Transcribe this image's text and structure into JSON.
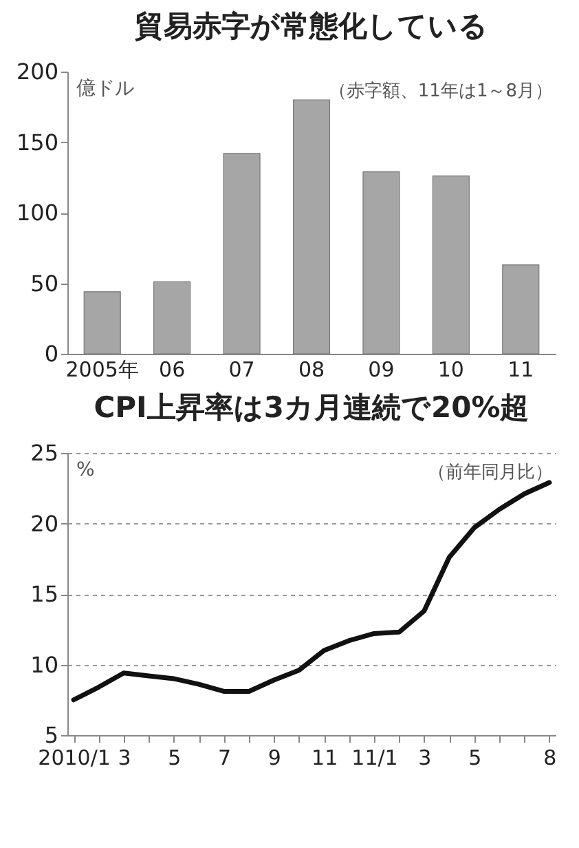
{
  "chart_data": [
    {
      "type": "bar",
      "title": "貿易赤字が常態化している",
      "ylabel": "億ドル",
      "annotations": [
        "（赤字額、11年は1～8月）"
      ],
      "categories": [
        "2005年",
        "06",
        "07",
        "08",
        "09",
        "10",
        "11"
      ],
      "values": [
        44,
        51,
        142,
        180,
        129,
        126,
        63
      ],
      "color": "#a6a6a6",
      "ylim": [
        0,
        200
      ],
      "yticks": [
        0,
        50,
        100,
        150,
        200
      ]
    },
    {
      "type": "line",
      "title": "CPI上昇率は3カ月連続で20%超",
      "ylabel": "%",
      "annotations": [
        "（前年同月比）"
      ],
      "categories": [
        "2010/1",
        null,
        "3",
        null,
        "5",
        null,
        "7",
        null,
        "9",
        null,
        "11",
        null,
        "11/1",
        null,
        "3",
        null,
        "5",
        null,
        null,
        "8"
      ],
      "series": [
        {
          "color": "#111111",
          "values": [
            7.5,
            8.4,
            9.4,
            9.2,
            9.0,
            8.6,
            8.1,
            8.1,
            8.9,
            9.6,
            11.0,
            11.7,
            12.2,
            12.3,
            13.8,
            17.6,
            19.7,
            21.0,
            22.1,
            22.9
          ]
        }
      ],
      "ylim": [
        5,
        25
      ],
      "yticks": [
        5,
        10,
        15,
        20,
        25
      ],
      "grid": "y",
      "line_style": "solid",
      "marker": "none"
    }
  ]
}
